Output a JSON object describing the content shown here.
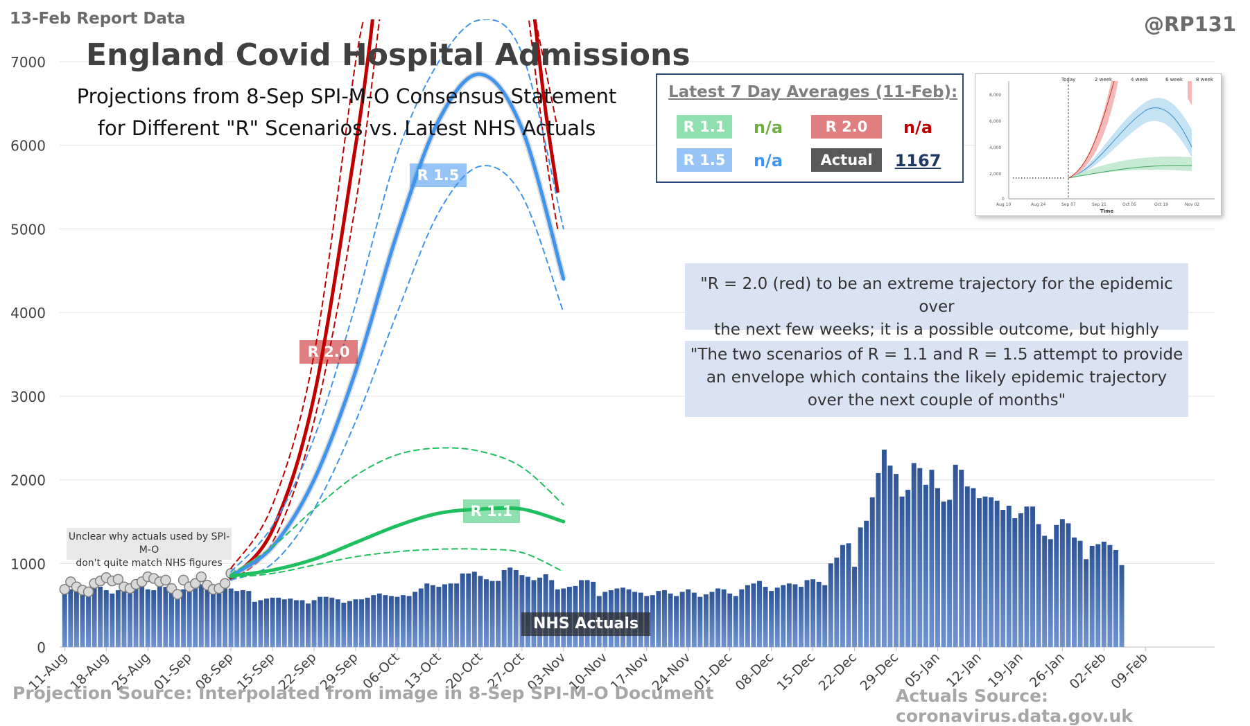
{
  "header": {
    "report_tag": "13-Feb Report Data",
    "handle": "@RP131",
    "title": "England Covid Hospital Admissions",
    "subtitle_line1": "Projections from 8-Sep SPI-M-O Consensus Statement",
    "subtitle_line2": "for Different \"R\" Scenarios vs. Latest NHS Actuals"
  },
  "legend": {
    "title": "Latest 7 Day Averages (11-Feb):",
    "r11_label": "R 1.1",
    "r11_value": "n/a",
    "r20_label": "R 2.0",
    "r20_value": "n/a",
    "r15_label": "R 1.5",
    "r15_value": "n/a",
    "actual_label": "Actual",
    "actual_value": "1167"
  },
  "quotes": {
    "quote1_line1": "\"R = 2.0 (red) to be an extreme trajectory for the epidemic over",
    "quote1_line2": "the next few weeks; it is a possible outcome, but highly unlikely\"",
    "quote2_line1": "\"The two scenarios of R = 1.1 and R = 1.5 attempt to provide",
    "quote2_line2": "an envelope which contains the likely epidemic trajectory",
    "quote2_line3": "over the next couple of months\""
  },
  "note": {
    "line1": "Unclear why actuals used by SPI-M-O",
    "line2": "don't quite match NHS figures"
  },
  "footer": {
    "projection_source": "Projection Source: Interpolated from image in 8-Sep SPI-M-O Document",
    "actuals_source": "Actuals Source: coronavirus.data.gov.uk"
  },
  "inset": {
    "header_labels": [
      "Today",
      "2 week",
      "4 week",
      "6 week",
      "8 week"
    ],
    "y_ticks": [
      "8,000",
      "6,000",
      "4,000",
      "2,000",
      "0"
    ],
    "x_ticks": [
      "Aug 10",
      "Aug 24",
      "Sep 07",
      "Sep 21",
      "Oct 05",
      "Oct 19",
      "Nov 02"
    ],
    "x_title": "Time"
  },
  "colors": {
    "bars": "#2e5597",
    "r11": "#1fbf5f",
    "r15": "#3f94ee",
    "r20": "#c00000",
    "actual_pill": "#595959",
    "actual_value": "#1f3864",
    "r11_value": "#70ad47",
    "r15_value": "#3f94ee",
    "r20_value": "#c00000"
  },
  "chart_data": {
    "type": "bar",
    "title": "England Covid Hospital Admissions",
    "ylim": [
      0,
      7000
    ],
    "y_ticks": [
      0,
      1000,
      2000,
      3000,
      4000,
      5000,
      6000,
      7000
    ],
    "grid": true,
    "x_start": "2020-08-11",
    "x_tick_labels": [
      "11-Aug",
      "18-Aug",
      "25-Aug",
      "01-Sep",
      "08-Sep",
      "15-Sep",
      "22-Sep",
      "29-Sep",
      "06-Oct",
      "13-Oct",
      "20-Oct",
      "27-Oct",
      "03-Nov",
      "10-Nov",
      "17-Nov",
      "24-Nov",
      "01-Dec",
      "08-Dec",
      "15-Dec",
      "22-Dec",
      "29-Dec",
      "05-Jan",
      "12-Jan",
      "19-Jan",
      "26-Jan",
      "02-Feb",
      "09-Feb"
    ],
    "x_tick_every_days": 7,
    "series": [
      {
        "name": "NHS Actuals",
        "type": "bar",
        "values": [
          700,
          690,
          660,
          650,
          710,
          710,
          720,
          680,
          640,
          680,
          700,
          740,
          760,
          720,
          690,
          680,
          740,
          720,
          700,
          680,
          690,
          760,
          790,
          750,
          690,
          660,
          640,
          700,
          700,
          670,
          680,
          670,
          540,
          560,
          580,
          590,
          590,
          570,
          580,
          560,
          560,
          520,
          560,
          600,
          600,
          590,
          570,
          530,
          550,
          570,
          570,
          590,
          620,
          640,
          620,
          610,
          600,
          620,
          610,
          660,
          700,
          760,
          740,
          720,
          750,
          760,
          760,
          880,
          880,
          900,
          850,
          810,
          790,
          790,
          920,
          950,
          920,
          860,
          840,
          800,
          830,
          870,
          800,
          690,
          700,
          720,
          730,
          800,
          800,
          780,
          610,
          660,
          680,
          700,
          710,
          690,
          660,
          650,
          610,
          620,
          670,
          680,
          640,
          610,
          660,
          690,
          650,
          600,
          630,
          660,
          700,
          690,
          640,
          610,
          690,
          740,
          760,
          790,
          720,
          670,
          710,
          740,
          760,
          750,
          720,
          800,
          810,
          780,
          740,
          1000,
          1070,
          1220,
          1240,
          960,
          1430,
          1510,
          1790,
          2080,
          2360,
          2170,
          2070,
          1800,
          1880,
          2200,
          2140,
          1940,
          2120,
          1900,
          1740,
          1760,
          2180,
          2120,
          1920,
          1900,
          1780,
          1800,
          1790,
          1750,
          1640,
          1690,
          1540,
          1600,
          1680,
          1680,
          1470,
          1330,
          1290,
          1460,
          1530,
          1480,
          1310,
          1270,
          1050,
          1210,
          1230,
          1260,
          1220,
          1160,
          980
        ]
      },
      {
        "name": "Unlabeled grey markers",
        "type": "scatter",
        "x": [
          "2020-08-11",
          "2020-08-12",
          "2020-08-13",
          "2020-08-14",
          "2020-08-15",
          "2020-08-16",
          "2020-08-17",
          "2020-08-18",
          "2020-08-19",
          "2020-08-20",
          "2020-08-21",
          "2020-08-22",
          "2020-08-23",
          "2020-08-24",
          "2020-08-25",
          "2020-08-26",
          "2020-08-27",
          "2020-08-28",
          "2020-08-29",
          "2020-08-30",
          "2020-08-31",
          "2020-09-01",
          "2020-09-02",
          "2020-09-03",
          "2020-09-04",
          "2020-09-05",
          "2020-09-06",
          "2020-09-07",
          "2020-09-08"
        ],
        "values": [
          690,
          780,
          720,
          680,
          660,
          760,
          790,
          830,
          790,
          810,
          720,
          700,
          750,
          780,
          840,
          820,
          780,
          800,
          700,
          630,
          800,
          720,
          760,
          840,
          740,
          690,
          700,
          760,
          880
        ]
      },
      {
        "name": "R 2.0",
        "type": "line",
        "x": [
          "2020-09-08",
          "2020-09-15",
          "2020-09-22",
          "2020-09-29",
          "2020-10-01",
          "2020-10-02"
        ],
        "values": [
          820,
          1400,
          3000,
          6000,
          7000,
          7600
        ]
      },
      {
        "name": "R 2.0 upper",
        "type": "line",
        "x": [
          "2020-09-08",
          "2020-09-15",
          "2020-09-22",
          "2020-09-29",
          "2020-10-01"
        ],
        "values": [
          940,
          1700,
          3500,
          7000,
          7600
        ]
      },
      {
        "name": "R 2.0 lower",
        "type": "line",
        "x": [
          "2020-09-08",
          "2020-09-15",
          "2020-09-22",
          "2020-09-29",
          "2020-10-03"
        ],
        "values": [
          800,
          1250,
          2700,
          5300,
          7500
        ]
      },
      {
        "name": "R 2.0 (late)",
        "type": "line",
        "x": [
          "2020-10-29",
          "2020-10-31",
          "2020-11-02"
        ],
        "values": [
          7600,
          6400,
          5450
        ]
      },
      {
        "name": "R 2.0 upper (late)",
        "type": "line",
        "x": [
          "2020-10-29",
          "2020-11-02"
        ],
        "values": [
          7600,
          6200
        ]
      },
      {
        "name": "R 2.0 lower (late)",
        "type": "line",
        "x": [
          "2020-10-28",
          "2020-10-31",
          "2020-11-02"
        ],
        "values": [
          7600,
          5900,
          5000
        ]
      },
      {
        "name": "R 1.5",
        "type": "line",
        "x": [
          "2020-09-08",
          "2020-09-15",
          "2020-09-22",
          "2020-09-29",
          "2020-10-06",
          "2020-10-13",
          "2020-10-20",
          "2020-10-27",
          "2020-11-03"
        ],
        "values": [
          850,
          1200,
          2000,
          3300,
          4950,
          6300,
          6850,
          6200,
          4400
        ]
      },
      {
        "name": "R 1.5 upper",
        "type": "line",
        "x": [
          "2020-09-08",
          "2020-09-15",
          "2020-09-22",
          "2020-09-29",
          "2020-10-06",
          "2020-10-13",
          "2020-10-20",
          "2020-10-27",
          "2020-11-03"
        ],
        "values": [
          900,
          1450,
          2500,
          4100,
          5900,
          7000,
          7500,
          7100,
          5000
        ]
      },
      {
        "name": "R 1.5 lower",
        "type": "line",
        "x": [
          "2020-09-08",
          "2020-09-15",
          "2020-09-22",
          "2020-09-29",
          "2020-10-06",
          "2020-10-13",
          "2020-10-20",
          "2020-10-27",
          "2020-11-03"
        ],
        "values": [
          800,
          1000,
          1650,
          2700,
          4000,
          5200,
          5750,
          5400,
          4000
        ]
      },
      {
        "name": "R 1.1",
        "type": "line",
        "x": [
          "2020-09-08",
          "2020-09-15",
          "2020-09-22",
          "2020-09-29",
          "2020-10-06",
          "2020-10-13",
          "2020-10-20",
          "2020-10-27",
          "2020-11-03"
        ],
        "values": [
          850,
          920,
          1050,
          1250,
          1450,
          1600,
          1650,
          1650,
          1500
        ]
      },
      {
        "name": "R 1.1 upper",
        "type": "line",
        "x": [
          "2020-09-08",
          "2020-09-15",
          "2020-09-22",
          "2020-09-29",
          "2020-10-06",
          "2020-10-13",
          "2020-10-20",
          "2020-10-27",
          "2020-11-03"
        ],
        "values": [
          870,
          1200,
          1650,
          2050,
          2300,
          2380,
          2340,
          2150,
          1700
        ]
      },
      {
        "name": "R 1.1 lower",
        "type": "line",
        "x": [
          "2020-09-08",
          "2020-09-15",
          "2020-09-22",
          "2020-09-29",
          "2020-10-06",
          "2020-10-13",
          "2020-10-20",
          "2020-10-27",
          "2020-11-03"
        ],
        "values": [
          830,
          880,
          980,
          1080,
          1140,
          1170,
          1170,
          1130,
          900
        ]
      }
    ],
    "annotations": [
      "R 2.0",
      "R 1.5",
      "R 1.1",
      "NHS Actuals"
    ]
  }
}
